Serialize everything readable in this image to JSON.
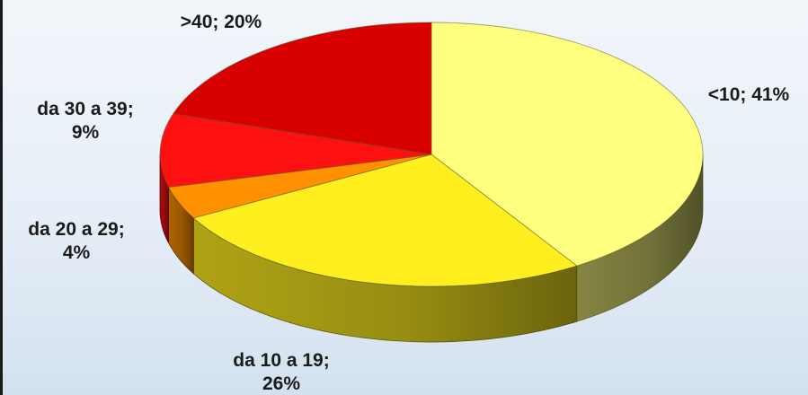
{
  "chart_data": {
    "type": "pie",
    "style": "3d-exploded-none",
    "title": "",
    "slices": [
      {
        "label": "<10",
        "value": 41,
        "label_lines": [
          "<10; 41%"
        ],
        "color": "#ffff80"
      },
      {
        "label": "da 10 a 19",
        "value": 26,
        "label_lines": [
          "da 10 a 19;",
          "26%"
        ],
        "color": "#ffef1e"
      },
      {
        "label": "da 20 a 29",
        "value": 4,
        "label_lines": [
          "da 20 a 29;",
          "4%"
        ],
        "color": "#ff9000"
      },
      {
        "label": "da 30 a 39",
        "value": 9,
        "label_lines": [
          "da 30 a 39;",
          "9%"
        ],
        "color": "#fd1010"
      },
      {
        "label": ">40",
        "value": 20,
        "label_lines": [
          ">40; 20%"
        ],
        "color": "#d90000"
      }
    ],
    "legend": "none",
    "start": "top",
    "direction": "clockwise"
  }
}
